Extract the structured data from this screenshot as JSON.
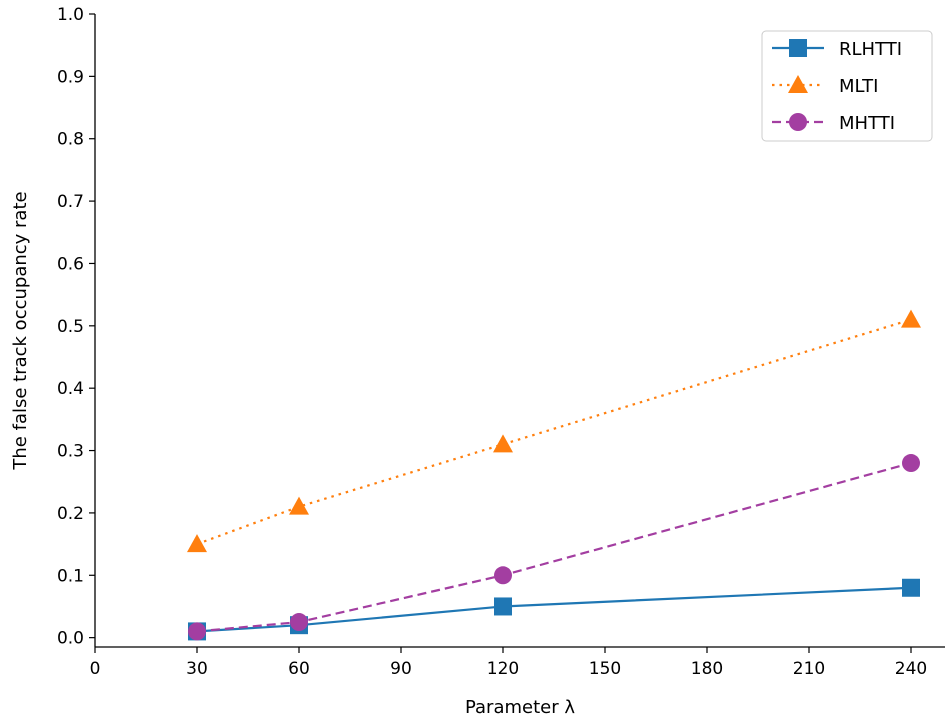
{
  "chart_data": {
    "type": "line",
    "xlabel": "Parameter λ",
    "ylabel": "The false track occupancy rate",
    "xlim": [
      0,
      250
    ],
    "ylim": [
      -0.015,
      1.0
    ],
    "xticks": [
      0,
      30,
      60,
      90,
      120,
      150,
      180,
      210,
      240
    ],
    "xtick_labels": [
      "0",
      "30",
      "60",
      "90",
      "120",
      "150",
      "180",
      "210",
      "240"
    ],
    "yticks": [
      0.0,
      0.1,
      0.2,
      0.3,
      0.4,
      0.5,
      0.6,
      0.7,
      0.8,
      0.9,
      1.0
    ],
    "ytick_labels": [
      "0.0",
      "0.1",
      "0.2",
      "0.3",
      "0.4",
      "0.5",
      "0.6",
      "0.7",
      "0.8",
      "0.9",
      "1.0"
    ],
    "grid": false,
    "legend_position": "top-right",
    "series": [
      {
        "name": "RLHTTI",
        "x": [
          30,
          60,
          120,
          240
        ],
        "y": [
          0.01,
          0.02,
          0.05,
          0.08
        ],
        "color": "#1f77b4",
        "line_style": "solid",
        "marker": "square"
      },
      {
        "name": "MLTI",
        "x": [
          30,
          60,
          120,
          240
        ],
        "y": [
          0.15,
          0.21,
          0.31,
          0.51
        ],
        "color": "#ff7f0e",
        "line_style": "dotted",
        "marker": "triangle"
      },
      {
        "name": "MHTTI",
        "x": [
          30,
          60,
          120,
          240
        ],
        "y": [
          0.01,
          0.025,
          0.1,
          0.28
        ],
        "color": "#a33ea1",
        "line_style": "dashed",
        "marker": "circle"
      }
    ]
  }
}
